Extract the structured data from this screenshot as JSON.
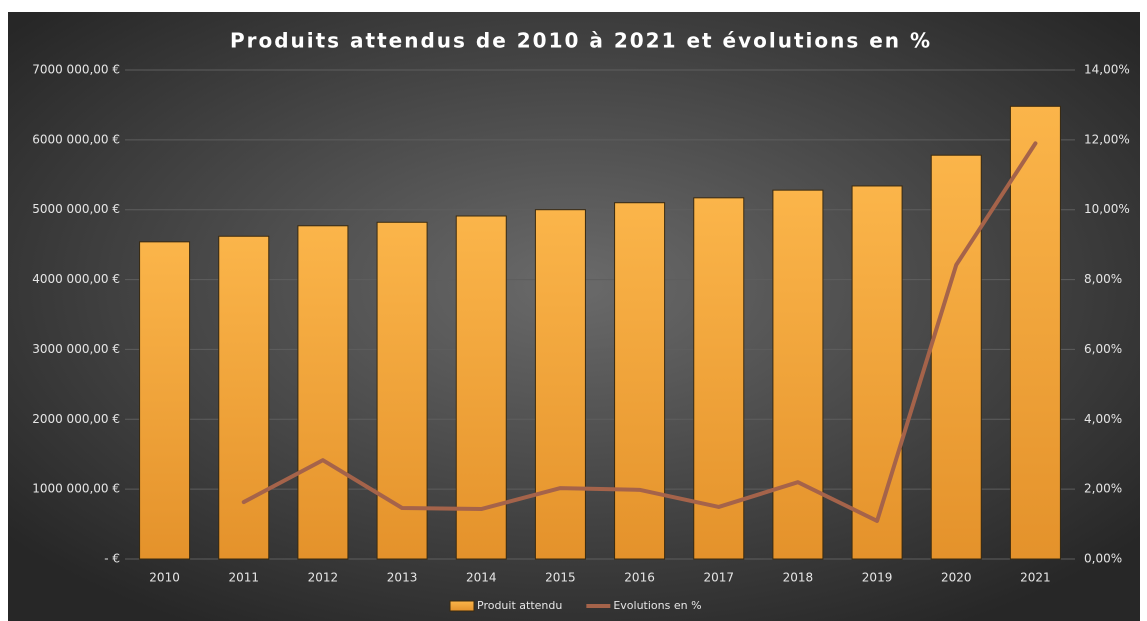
{
  "chart_data": {
    "type": "bar_line",
    "title": "Produits attendus de 2010 à 2021 et évolutions en %",
    "categories": [
      "2010",
      "2011",
      "2012",
      "2013",
      "2014",
      "2015",
      "2016",
      "2017",
      "2018",
      "2019",
      "2020",
      "2021"
    ],
    "series": [
      {
        "name": "Produit attendu",
        "type": "bar",
        "color": "#f5a83c",
        "values": [
          4540000,
          4620000,
          4770000,
          4820000,
          4910000,
          5000000,
          5100000,
          5170000,
          5280000,
          5340000,
          5780000,
          6480000
        ]
      },
      {
        "name": "Evolutions en %",
        "type": "line",
        "axis": "y2",
        "color": "#a5634a",
        "values": [
          null,
          1.63,
          2.83,
          1.46,
          1.43,
          2.03,
          1.98,
          1.49,
          2.2,
          1.09,
          8.42,
          11.9
        ]
      }
    ],
    "ylim": [
      0,
      7000000
    ],
    "yticks": [
      {
        "value": 0,
        "label": "-   €"
      },
      {
        "value": 1000000,
        "label": "1000 000,00 €"
      },
      {
        "value": 2000000,
        "label": "2000 000,00 €"
      },
      {
        "value": 3000000,
        "label": "3000 000,00 €"
      },
      {
        "value": 4000000,
        "label": "4000 000,00 €"
      },
      {
        "value": 5000000,
        "label": "5000 000,00 €"
      },
      {
        "value": 6000000,
        "label": "6000 000,00 €"
      },
      {
        "value": 7000000,
        "label": "7000 000,00 €"
      }
    ],
    "y2lim": [
      0,
      14
    ],
    "y2ticks": [
      {
        "value": 0,
        "label": "0,00%"
      },
      {
        "value": 2,
        "label": "2,00%"
      },
      {
        "value": 4,
        "label": "4,00%"
      },
      {
        "value": 6,
        "label": "6,00%"
      },
      {
        "value": 8,
        "label": "8,00%"
      },
      {
        "value": 10,
        "label": "10,00%"
      },
      {
        "value": 12,
        "label": "12,00%"
      },
      {
        "value": 14,
        "label": "14,00%"
      }
    ],
    "grid": true,
    "legend": "bottom"
  }
}
